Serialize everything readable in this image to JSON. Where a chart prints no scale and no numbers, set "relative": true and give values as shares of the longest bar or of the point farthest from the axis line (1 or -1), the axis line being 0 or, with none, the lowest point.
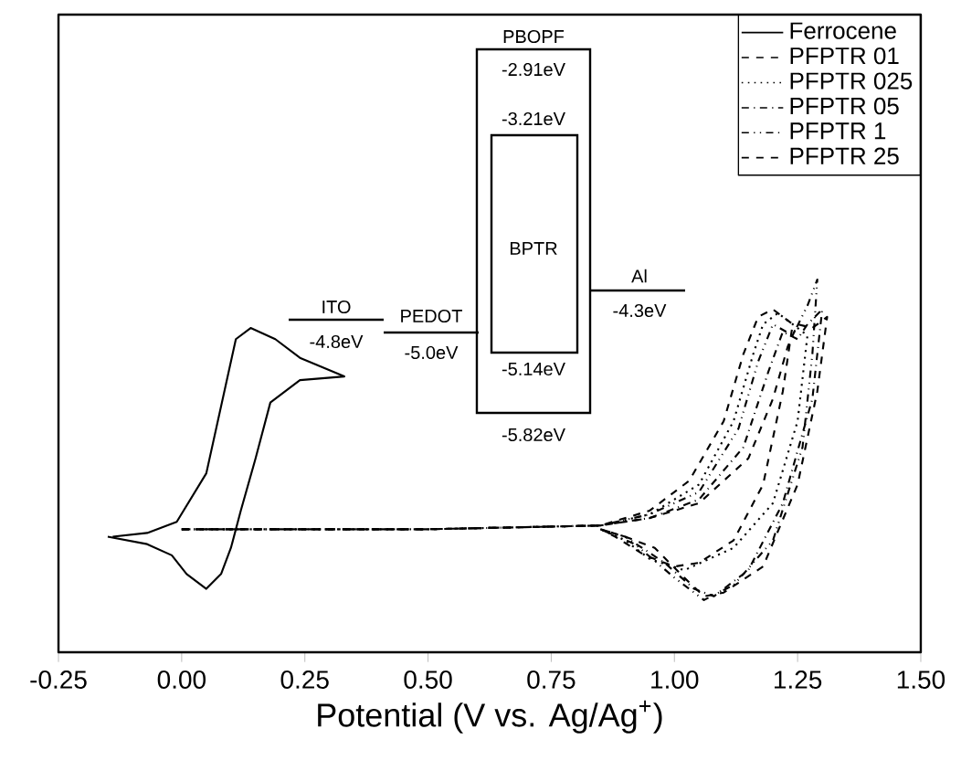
{
  "chart_data": {
    "type": "line",
    "relative": true,
    "xlabel": "Potential (V vs. Ag/Ag$^{+}$)",
    "xlim": [
      -0.25,
      1.5
    ],
    "xticks": [
      {
        "value": -0.25,
        "label": "-0.25"
      },
      {
        "value": 0,
        "label": "0.00"
      },
      {
        "value": 0.25,
        "label": "0.25"
      },
      {
        "value": 0.5,
        "label": "0.50"
      },
      {
        "value": 0.75,
        "label": "0.75"
      },
      {
        "value": 1,
        "label": "1.00"
      },
      {
        "value": 1.25,
        "label": "1.25"
      },
      {
        "value": 1.5,
        "label": "1.50"
      }
    ],
    "tick_labels": "x",
    "legend": "top right",
    "marker": "none",
    "annotations": [
      "PBOPF",
      "-2.91eV",
      "-3.21eV",
      "BPTR",
      "-5.14eV",
      "-5.82eV",
      "ITO",
      "-4.8eV",
      "PEDOT",
      "-5.0eV",
      "Al",
      "-4.3eV"
    ],
    "series": [
      {
        "name": "Ferrocene",
        "color": "#000000",
        "line_style": "solid",
        "x": [
          -0.15,
          -0.07,
          -0.02,
          0.01,
          0.05,
          0.08,
          0.1,
          0.12,
          0.15,
          0.18,
          0.24,
          0.33,
          0.24,
          0.19,
          0.14,
          0.11,
          0.09,
          0.05,
          -0.01,
          -0.07,
          -0.14
        ],
        "values": [
          0.31,
          0.29,
          0.26,
          0.21,
          0.17,
          0.21,
          0.28,
          0.38,
          0.52,
          0.67,
          0.73,
          0.74,
          0.79,
          0.84,
          0.87,
          0.84,
          0.72,
          0.48,
          0.35,
          0.32,
          0.31
        ]
      },
      {
        "name": "PFPTR 01",
        "color": "#000000",
        "line_style": "dashed",
        "x": [
          0.0,
          0.5,
          0.85,
          0.95,
          1.05,
          1.15,
          1.2,
          1.23,
          1.25,
          1.28,
          1.31,
          1.29,
          1.25,
          1.18,
          1.1,
          1.06,
          1.02,
          0.96,
          0.9,
          0.85
        ],
        "values": [
          0.33,
          0.33,
          0.34,
          0.36,
          0.4,
          0.52,
          0.68,
          0.82,
          0.88,
          0.87,
          0.9,
          0.7,
          0.45,
          0.23,
          0.16,
          0.15,
          0.2,
          0.28,
          0.31,
          0.33
        ]
      },
      {
        "name": "PFPTR 025",
        "color": "#000000",
        "line_style": "dotted",
        "x": [
          0.0,
          0.5,
          0.85,
          0.95,
          1.05,
          1.12,
          1.16,
          1.18,
          1.21,
          1.24,
          1.27,
          1.25,
          1.2,
          1.12,
          1.02,
          0.95,
          0.9,
          0.85
        ],
        "values": [
          0.33,
          0.33,
          0.34,
          0.37,
          0.45,
          0.62,
          0.8,
          0.88,
          0.91,
          0.88,
          0.85,
          0.62,
          0.4,
          0.28,
          0.22,
          0.25,
          0.3,
          0.33
        ]
      },
      {
        "name": "PFPTR 05",
        "color": "#000000",
        "line_style": "dashdot",
        "x": [
          0.0,
          0.5,
          0.85,
          0.95,
          1.05,
          1.14,
          1.19,
          1.22,
          1.25,
          1.27,
          1.3,
          1.28,
          1.22,
          1.15,
          1.08,
          1.04,
          0.98,
          0.9,
          0.85
        ],
        "values": [
          0.33,
          0.33,
          0.34,
          0.36,
          0.41,
          0.55,
          0.75,
          0.86,
          0.84,
          0.88,
          0.92,
          0.68,
          0.4,
          0.22,
          0.15,
          0.17,
          0.24,
          0.31,
          0.33
        ]
      },
      {
        "name": "PFPTR 1",
        "color": "#000000",
        "line_style": "dashdotdot",
        "x": [
          0.0,
          0.5,
          0.85,
          0.95,
          1.05,
          1.13,
          1.17,
          1.2,
          1.24,
          1.27,
          1.29,
          1.28,
          1.26,
          1.2,
          1.12,
          1.06,
          1.0,
          0.92,
          0.85
        ],
        "values": [
          0.33,
          0.33,
          0.34,
          0.37,
          0.43,
          0.6,
          0.78,
          0.88,
          0.85,
          0.93,
          1.0,
          0.8,
          0.55,
          0.3,
          0.18,
          0.14,
          0.2,
          0.29,
          0.33
        ]
      },
      {
        "name": "PFPTR 25",
        "color": "#000000",
        "line_style": "dashed",
        "x": [
          0.0,
          0.5,
          0.85,
          0.95,
          1.03,
          1.1,
          1.14,
          1.17,
          1.2,
          1.22,
          1.24,
          1.22,
          1.18,
          1.12,
          1.05,
          1.0,
          0.94,
          0.88,
          0.85
        ],
        "values": [
          0.33,
          0.33,
          0.34,
          0.38,
          0.46,
          0.62,
          0.8,
          0.9,
          0.92,
          0.9,
          0.88,
          0.7,
          0.45,
          0.3,
          0.24,
          0.23,
          0.26,
          0.31,
          0.33
        ]
      }
    ]
  }
}
